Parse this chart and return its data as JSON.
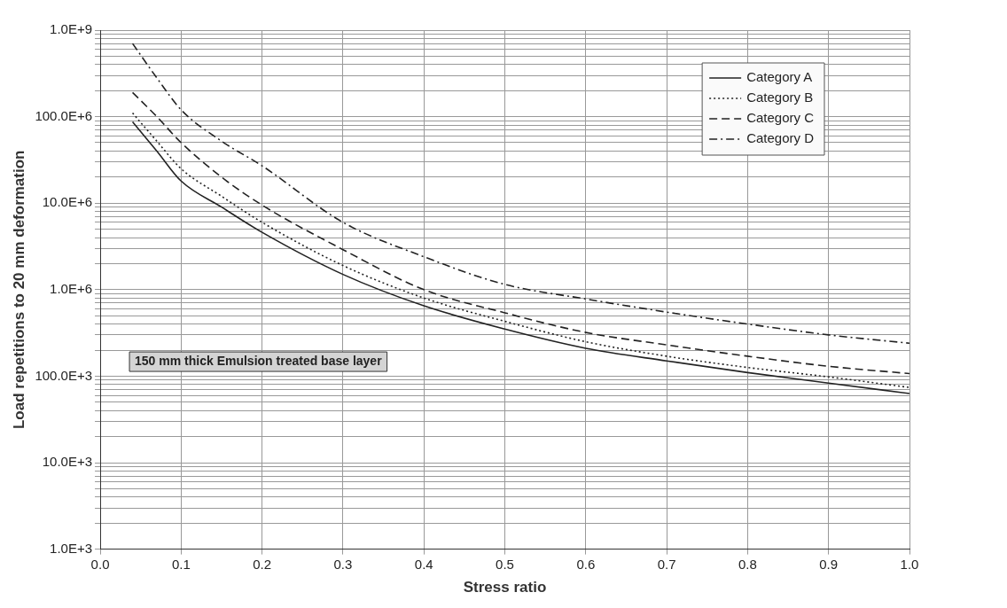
{
  "chart_data": {
    "type": "line",
    "xlabel": "Stress ratio",
    "ylabel": "Load repetitions to 20 mm deformation",
    "x": [
      0.04,
      0.07,
      0.1,
      0.15,
      0.2,
      0.3,
      0.4,
      0.5,
      0.6,
      0.7,
      0.8,
      0.9,
      1.0
    ],
    "series": [
      {
        "name": "Category A",
        "color": "#222222",
        "line_style": "solid",
        "values": [
          87000000,
          40000000,
          18000000,
          9000000,
          4600000,
          1500000,
          650000,
          350000,
          210000,
          150000,
          110000,
          83000,
          63000
        ]
      },
      {
        "name": "Category B",
        "color": "#222222",
        "line_style": "dotted",
        "values": [
          110000000,
          52000000,
          25000000,
          12000000,
          6000000,
          1900000,
          800000,
          430000,
          250000,
          170000,
          126000,
          98000,
          74000
        ]
      },
      {
        "name": "Category C",
        "color": "#222222",
        "line_style": "dashed",
        "values": [
          190000000,
          100000000,
          50000000,
          20000000,
          9500000,
          2900000,
          1000000,
          540000,
          320000,
          230000,
          170000,
          130000,
          107000
        ]
      },
      {
        "name": "Category D",
        "color": "#222222",
        "line_style": "dashdot",
        "values": [
          700000000,
          280000000,
          120000000,
          52000000,
          27000000,
          6000000,
          2400000,
          1150000,
          780000,
          550000,
          400000,
          300000,
          240000
        ]
      }
    ],
    "xlim": [
      0,
      1
    ],
    "xticks": [
      {
        "value": 0,
        "label": "0.0"
      },
      {
        "value": 0.1,
        "label": "0.1"
      },
      {
        "value": 0.2,
        "label": "0.2"
      },
      {
        "value": 0.3,
        "label": "0.3"
      },
      {
        "value": 0.4,
        "label": "0.4"
      },
      {
        "value": 0.5,
        "label": "0.5"
      },
      {
        "value": 0.6,
        "label": "0.6"
      },
      {
        "value": 0.7,
        "label": "0.7"
      },
      {
        "value": 0.8,
        "label": "0.8"
      },
      {
        "value": 0.9,
        "label": "0.9"
      },
      {
        "value": 1,
        "label": "1.0"
      }
    ],
    "ylim": [
      1000,
      1000000000
    ],
    "yticks": [
      {
        "value": 1000,
        "label": "1.0E+3"
      },
      {
        "value": 2000,
        "label": null
      },
      {
        "value": 3000,
        "label": null
      },
      {
        "value": 4000,
        "label": null
      },
      {
        "value": 5000,
        "label": null
      },
      {
        "value": 6000,
        "label": null
      },
      {
        "value": 7000,
        "label": null
      },
      {
        "value": 8000,
        "label": null
      },
      {
        "value": 9000,
        "label": null
      },
      {
        "value": 10000,
        "label": "10.0E+3"
      },
      {
        "value": 20000,
        "label": null
      },
      {
        "value": 30000,
        "label": null
      },
      {
        "value": 40000,
        "label": null
      },
      {
        "value": 50000,
        "label": null
      },
      {
        "value": 60000,
        "label": null
      },
      {
        "value": 70000,
        "label": null
      },
      {
        "value": 80000,
        "label": null
      },
      {
        "value": 90000,
        "label": null
      },
      {
        "value": 100000,
        "label": "100.0E+3"
      },
      {
        "value": 200000,
        "label": null
      },
      {
        "value": 300000,
        "label": null
      },
      {
        "value": 400000,
        "label": null
      },
      {
        "value": 500000,
        "label": null
      },
      {
        "value": 600000,
        "label": null
      },
      {
        "value": 700000,
        "label": null
      },
      {
        "value": 800000,
        "label": null
      },
      {
        "value": 900000,
        "label": null
      },
      {
        "value": 1000000,
        "label": "1.0E+6"
      },
      {
        "value": 2000000,
        "label": null
      },
      {
        "value": 3000000,
        "label": null
      },
      {
        "value": 4000000,
        "label": null
      },
      {
        "value": 5000000,
        "label": null
      },
      {
        "value": 6000000,
        "label": null
      },
      {
        "value": 7000000,
        "label": null
      },
      {
        "value": 8000000,
        "label": null
      },
      {
        "value": 9000000,
        "label": null
      },
      {
        "value": 10000000,
        "label": "10.0E+6"
      },
      {
        "value": 20000000,
        "label": null
      },
      {
        "value": 30000000,
        "label": null
      },
      {
        "value": 40000000,
        "label": null
      },
      {
        "value": 50000000,
        "label": null
      },
      {
        "value": 60000000,
        "label": null
      },
      {
        "value": 70000000,
        "label": null
      },
      {
        "value": 80000000,
        "label": null
      },
      {
        "value": 90000000,
        "label": null
      },
      {
        "value": 100000000,
        "label": "100.0E+6"
      },
      {
        "value": 200000000,
        "label": null
      },
      {
        "value": 300000000,
        "label": null
      },
      {
        "value": 400000000,
        "label": null
      },
      {
        "value": 500000000,
        "label": null
      },
      {
        "value": 600000000,
        "label": null
      },
      {
        "value": 700000000,
        "label": null
      },
      {
        "value": 800000000,
        "label": null
      },
      {
        "value": 900000000,
        "label": null
      },
      {
        "value": 1000000000,
        "label": "1.0E+9"
      }
    ],
    "log": "y",
    "grid": true,
    "legend": "top right",
    "marker": "none",
    "annotations": [
      "150 mm thick Emulsion treated base layer"
    ]
  }
}
